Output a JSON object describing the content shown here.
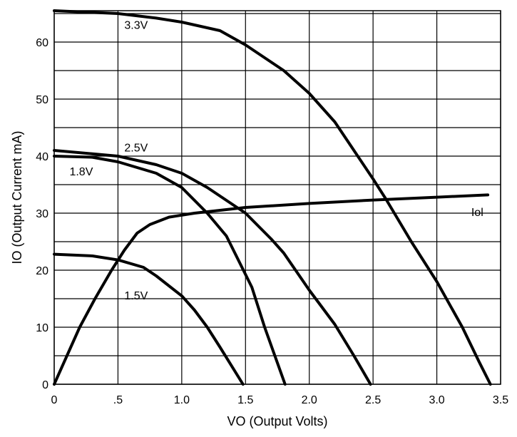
{
  "chart_data": {
    "type": "line",
    "title": "",
    "xlabel": "VO (Output Volts)",
    "ylabel": "IO (Output Current mA)",
    "xlim": [
      0,
      3.5
    ],
    "ylim": [
      0,
      65.5
    ],
    "grid": true,
    "x_ticks": [
      0,
      0.5,
      1.0,
      1.5,
      2.0,
      2.5,
      3.0,
      3.5
    ],
    "x_tick_labels": [
      "0",
      ".5",
      "1.0",
      "1.5",
      "2.0",
      "2.5",
      "3.0",
      "3.5"
    ],
    "y_ticks": [
      0,
      10,
      20,
      30,
      40,
      50,
      60
    ],
    "y_tick_labels": [
      "0",
      "10",
      "20",
      "30",
      "40",
      "50",
      "60"
    ],
    "y_grid_step": 5,
    "series": [
      {
        "name": "3.3V",
        "label_at": [
          0.55,
          62.3
        ],
        "points": [
          [
            0,
            65.5
          ],
          [
            0.5,
            65
          ],
          [
            0.8,
            64.2
          ],
          [
            1.0,
            63.5
          ],
          [
            1.3,
            62
          ],
          [
            1.5,
            59.5
          ],
          [
            1.7,
            56.5
          ],
          [
            1.8,
            55
          ],
          [
            2.0,
            51
          ],
          [
            2.2,
            46
          ],
          [
            2.35,
            41
          ],
          [
            2.5,
            36
          ],
          [
            2.6,
            32.5
          ],
          [
            2.8,
            25
          ],
          [
            3.0,
            18
          ],
          [
            3.2,
            10
          ],
          [
            3.33,
            4
          ],
          [
            3.42,
            0
          ]
        ]
      },
      {
        "name": "2.5V",
        "label_at": [
          0.55,
          40.8
        ],
        "points": [
          [
            0,
            41
          ],
          [
            0.5,
            40
          ],
          [
            0.8,
            38.5
          ],
          [
            1.0,
            37
          ],
          [
            1.2,
            34.5
          ],
          [
            1.4,
            31.5
          ],
          [
            1.5,
            30
          ],
          [
            1.7,
            25.5
          ],
          [
            1.8,
            23
          ],
          [
            2.0,
            16.5
          ],
          [
            2.2,
            10.5
          ],
          [
            2.35,
            5
          ],
          [
            2.48,
            0
          ]
        ]
      },
      {
        "name": "1.8V",
        "label_at": [
          0.12,
          36.6
        ],
        "points": [
          [
            0,
            40
          ],
          [
            0.3,
            39.8
          ],
          [
            0.5,
            39
          ],
          [
            0.8,
            37
          ],
          [
            1.0,
            34.5
          ],
          [
            1.2,
            30
          ],
          [
            1.35,
            26
          ],
          [
            1.45,
            21.5
          ],
          [
            1.55,
            17
          ],
          [
            1.65,
            10
          ],
          [
            1.73,
            5
          ],
          [
            1.81,
            0
          ]
        ]
      },
      {
        "name": "1.5V",
        "label_at": [
          0.55,
          14.9
        ],
        "points": [
          [
            0,
            22.8
          ],
          [
            0.3,
            22.5
          ],
          [
            0.5,
            21.8
          ],
          [
            0.7,
            20.5
          ],
          [
            0.8,
            19
          ],
          [
            1.0,
            15.5
          ],
          [
            1.1,
            13
          ],
          [
            1.2,
            10
          ],
          [
            1.3,
            6.5
          ],
          [
            1.48,
            0
          ]
        ]
      },
      {
        "name": "Iol",
        "label_at": [
          3.27,
          29.5
        ],
        "points": [
          [
            0,
            0
          ],
          [
            0.1,
            5
          ],
          [
            0.2,
            10
          ],
          [
            0.32,
            15
          ],
          [
            0.45,
            20
          ],
          [
            0.55,
            23.5
          ],
          [
            0.65,
            26.5
          ],
          [
            0.75,
            28
          ],
          [
            0.9,
            29.3
          ],
          [
            1.1,
            30
          ],
          [
            1.5,
            31
          ],
          [
            2.0,
            31.7
          ],
          [
            2.5,
            32.3
          ],
          [
            3.0,
            32.8
          ],
          [
            3.4,
            33.2
          ]
        ]
      }
    ]
  }
}
